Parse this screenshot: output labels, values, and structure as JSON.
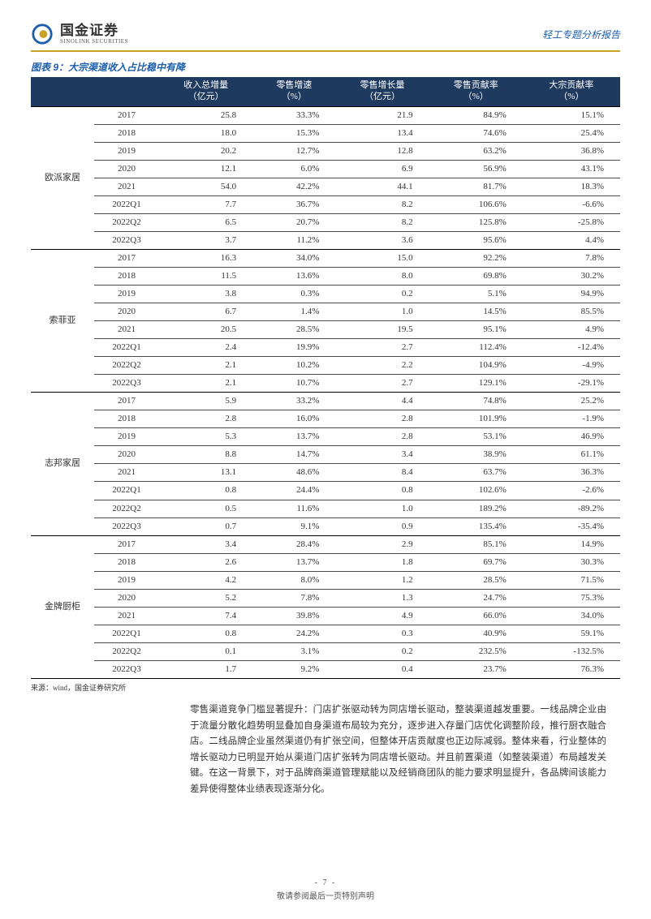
{
  "logo": {
    "cn": "国金证券",
    "en": "SINOLINK SECURITIES"
  },
  "report_type": "轻工专题分析报告",
  "figure_title": "图表 9：大宗渠道收入占比稳中有降",
  "colors": {
    "header_bg": "#1f3a5f",
    "header_text": "#ffffff",
    "accent_blue": "#1e5ea8",
    "gold_line": "#c9a227",
    "row_border": "#4a4a4a",
    "group_border": "#000000"
  },
  "columns": [
    {
      "label": ""
    },
    {
      "label": ""
    },
    {
      "label": "收入总增量\n（亿元）"
    },
    {
      "label": "零售增速\n（%）"
    },
    {
      "label": "零售增长量\n（亿元）"
    },
    {
      "label": "零售贡献率\n（%）"
    },
    {
      "label": "大宗贡献率\n（%）"
    }
  ],
  "groups": [
    {
      "company": "欧派家居",
      "rows": [
        {
          "year": "2017",
          "v": [
            "25.8",
            "33.3%",
            "21.9",
            "84.9%",
            "15.1%"
          ]
        },
        {
          "year": "2018",
          "v": [
            "18.0",
            "15.3%",
            "13.4",
            "74.6%",
            "25.4%"
          ]
        },
        {
          "year": "2019",
          "v": [
            "20.2",
            "12.7%",
            "12.8",
            "63.2%",
            "36.8%"
          ]
        },
        {
          "year": "2020",
          "v": [
            "12.1",
            "6.0%",
            "6.9",
            "56.9%",
            "43.1%"
          ]
        },
        {
          "year": "2021",
          "v": [
            "54.0",
            "42.2%",
            "44.1",
            "81.7%",
            "18.3%"
          ]
        },
        {
          "year": "2022Q1",
          "v": [
            "7.7",
            "36.7%",
            "8.2",
            "106.6%",
            "-6.6%"
          ]
        },
        {
          "year": "2022Q2",
          "v": [
            "6.5",
            "20.7%",
            "8.2",
            "125.8%",
            "-25.8%"
          ]
        },
        {
          "year": "2022Q3",
          "v": [
            "3.7",
            "11.2%",
            "3.6",
            "95.6%",
            "4.4%"
          ]
        }
      ]
    },
    {
      "company": "索菲亚",
      "rows": [
        {
          "year": "2017",
          "v": [
            "16.3",
            "34.0%",
            "15.0",
            "92.2%",
            "7.8%"
          ]
        },
        {
          "year": "2018",
          "v": [
            "11.5",
            "13.6%",
            "8.0",
            "69.8%",
            "30.2%"
          ]
        },
        {
          "year": "2019",
          "v": [
            "3.8",
            "0.3%",
            "0.2",
            "5.1%",
            "94.9%"
          ]
        },
        {
          "year": "2020",
          "v": [
            "6.7",
            "1.4%",
            "1.0",
            "14.5%",
            "85.5%"
          ]
        },
        {
          "year": "2021",
          "v": [
            "20.5",
            "28.5%",
            "19.5",
            "95.1%",
            "4.9%"
          ]
        },
        {
          "year": "2022Q1",
          "v": [
            "2.4",
            "19.9%",
            "2.7",
            "112.4%",
            "-12.4%"
          ]
        },
        {
          "year": "2022Q2",
          "v": [
            "2.1",
            "10.2%",
            "2.2",
            "104.9%",
            "-4.9%"
          ]
        },
        {
          "year": "2022Q3",
          "v": [
            "2.1",
            "10.7%",
            "2.7",
            "129.1%",
            "-29.1%"
          ]
        }
      ]
    },
    {
      "company": "志邦家居",
      "rows": [
        {
          "year": "2017",
          "v": [
            "5.9",
            "33.2%",
            "4.4",
            "74.8%",
            "25.2%"
          ]
        },
        {
          "year": "2018",
          "v": [
            "2.8",
            "16.0%",
            "2.8",
            "101.9%",
            "-1.9%"
          ]
        },
        {
          "year": "2019",
          "v": [
            "5.3",
            "13.7%",
            "2.8",
            "53.1%",
            "46.9%"
          ]
        },
        {
          "year": "2020",
          "v": [
            "8.8",
            "14.7%",
            "3.4",
            "38.9%",
            "61.1%"
          ]
        },
        {
          "year": "2021",
          "v": [
            "13.1",
            "48.6%",
            "8.4",
            "63.7%",
            "36.3%"
          ]
        },
        {
          "year": "2022Q1",
          "v": [
            "0.8",
            "24.4%",
            "0.8",
            "102.6%",
            "-2.6%"
          ]
        },
        {
          "year": "2022Q2",
          "v": [
            "0.5",
            "11.6%",
            "1.0",
            "189.2%",
            "-89.2%"
          ]
        },
        {
          "year": "2022Q3",
          "v": [
            "0.7",
            "9.1%",
            "0.9",
            "135.4%",
            "-35.4%"
          ]
        }
      ]
    },
    {
      "company": "金牌厨柜",
      "rows": [
        {
          "year": "2017",
          "v": [
            "3.4",
            "28.4%",
            "2.9",
            "85.1%",
            "14.9%"
          ]
        },
        {
          "year": "2018",
          "v": [
            "2.6",
            "13.7%",
            "1.8",
            "69.7%",
            "30.3%"
          ]
        },
        {
          "year": "2019",
          "v": [
            "4.2",
            "8.0%",
            "1.2",
            "28.5%",
            "71.5%"
          ]
        },
        {
          "year": "2020",
          "v": [
            "5.2",
            "7.8%",
            "1.3",
            "24.7%",
            "75.3%"
          ]
        },
        {
          "year": "2021",
          "v": [
            "7.4",
            "39.8%",
            "4.9",
            "66.0%",
            "34.0%"
          ]
        },
        {
          "year": "2022Q1",
          "v": [
            "0.8",
            "24.2%",
            "0.3",
            "40.9%",
            "59.1%"
          ]
        },
        {
          "year": "2022Q2",
          "v": [
            "0.1",
            "3.1%",
            "0.2",
            "232.5%",
            "-132.5%"
          ]
        },
        {
          "year": "2022Q3",
          "v": [
            "1.7",
            "9.2%",
            "0.4",
            "23.7%",
            "76.3%"
          ]
        }
      ]
    }
  ],
  "source": "来源：wind，国金证券研究所",
  "paragraph": "零售渠道竞争门槛显著提升：门店扩张驱动转为同店增长驱动，整装渠道越发重要。一线品牌企业由于流量分散化趋势明显叠加自身渠道布局较为充分，逐步进入存量门店优化调整阶段，推行厨衣融合店。二线品牌企业虽然渠道仍有扩张空间，但整体开店贡献度也正边际减弱。整体来看，行业整体的增长驱动力已明显开始从渠道门店扩张转为同店增长驱动。并且前置渠道（如整装渠道）布局越发关键。在这一背景下，对于品牌商渠道管理赋能以及经销商团队的能力要求明显提升，各品牌间该能力差异使得整体业绩表现逐渐分化。",
  "footer": {
    "page": "- 7 -",
    "disclaimer": "敬请参阅最后一页特别声明"
  }
}
